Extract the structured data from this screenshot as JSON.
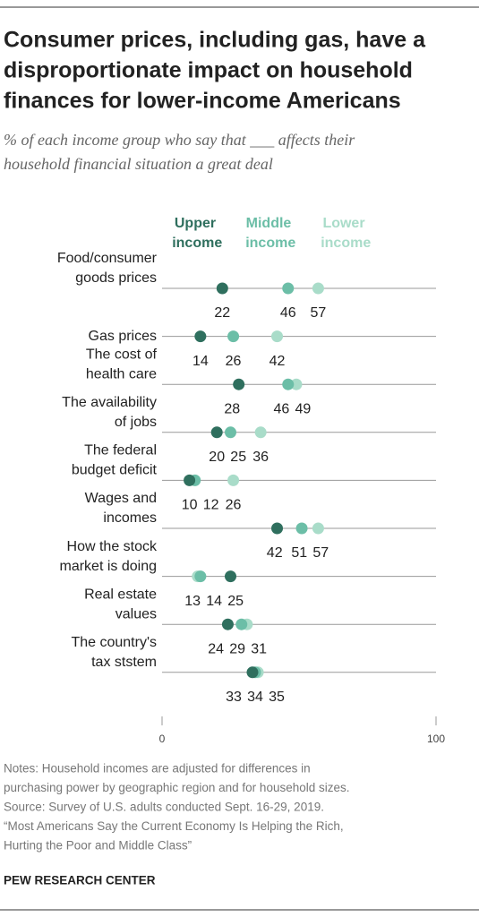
{
  "chart_data": {
    "type": "dot",
    "title": [
      "Consumer prices, including gas, have a",
      "disproportionate impact on household",
      "finances for lower-income Americans"
    ],
    "subtitle": [
      "% of each income group who say that ___ affects their",
      "household financial situation a great deal"
    ],
    "categories": [
      [
        "Food/consumer",
        "goods prices"
      ],
      [
        "Gas prices"
      ],
      [
        "The cost of",
        "health care"
      ],
      [
        "The availability",
        "of jobs"
      ],
      [
        "The federal",
        "budget deficit"
      ],
      [
        "Wages and",
        "incomes"
      ],
      [
        "How the stock",
        "market is doing"
      ],
      [
        "Real estate",
        "values"
      ],
      [
        "The country's",
        "tax ststem"
      ]
    ],
    "series": [
      {
        "name": "Upper income",
        "color": "#2f6f5e",
        "values": [
          22,
          14,
          28,
          20,
          10,
          42,
          25,
          24,
          33
        ]
      },
      {
        "name": "Middle income",
        "color": "#6cbea7",
        "values": [
          46,
          26,
          46,
          25,
          12,
          51,
          14,
          29,
          34
        ]
      },
      {
        "name": "Lower income",
        "color": "#a9dcc9",
        "values": [
          57,
          42,
          49,
          36,
          26,
          57,
          13,
          31,
          35
        ]
      }
    ],
    "xlim": [
      0,
      100
    ],
    "xticks": [
      0,
      100
    ],
    "notes": [
      "Notes: Household incomes are adjusted for differences in",
      "purchasing power by geographic region and for household sizes.",
      "Source: Survey of U.S. adults conducted Sept. 16-29, 2019.",
      "“Most Americans Say the Current Economy Is Helping the Rich,",
      "Hurting the Poor and Middle Class”"
    ],
    "footer": "PEW RESEARCH CENTER"
  }
}
